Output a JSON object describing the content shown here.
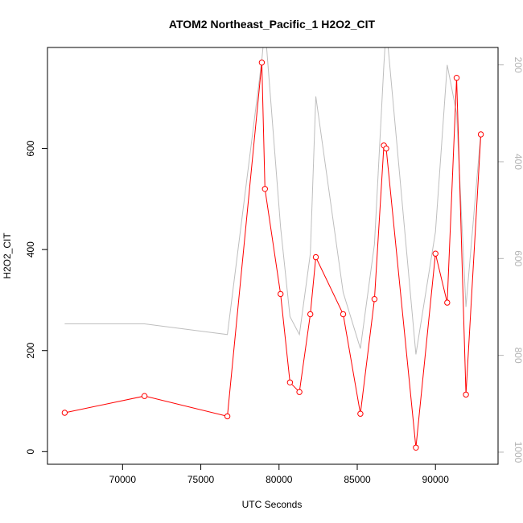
{
  "chart_data": {
    "type": "line",
    "title": "ATOM2 Northeast_Pacific_1 H2O2_CIT",
    "xlabel": "UTC Seconds",
    "ylabel": "H2O2_CIT",
    "xlim": [
      65200,
      94000
    ],
    "ylim": [
      -25,
      800
    ],
    "y2lim": [
      1025,
      164
    ],
    "x_ticks": [
      70000,
      75000,
      80000,
      85000,
      90000
    ],
    "y_ticks": [
      0,
      200,
      400,
      600
    ],
    "y2_ticks": [
      200,
      400,
      600,
      800,
      1000
    ],
    "series": [
      {
        "color": "#ff0000",
        "marker": "open-circle",
        "axis": "left",
        "x": [
          66300,
          71400,
          76700,
          78900,
          79100,
          80100,
          80700,
          81300,
          82000,
          82350,
          84100,
          85200,
          86100,
          86700,
          86850,
          88750,
          90000,
          90750,
          91350,
          91950,
          92900
        ],
        "y": [
          77,
          110,
          70,
          770,
          520,
          312,
          137,
          118,
          272,
          385,
          272,
          75,
          302,
          606,
          600,
          8,
          392,
          295,
          740,
          113,
          628
        ]
      },
      {
        "color": "#bebebe",
        "marker": "none",
        "axis": "right",
        "x": [
          66300,
          71400,
          76700,
          78900,
          79100,
          80100,
          80700,
          81300,
          82000,
          82350,
          84100,
          85200,
          86100,
          86700,
          86850,
          88750,
          90000,
          90750,
          91350,
          91950,
          92900
        ],
        "y": [
          735,
          735,
          757,
          190,
          120,
          535,
          720,
          757,
          590,
          265,
          670,
          786,
          570,
          200,
          120,
          798,
          545,
          200,
          300,
          700,
          340
        ]
      }
    ]
  }
}
